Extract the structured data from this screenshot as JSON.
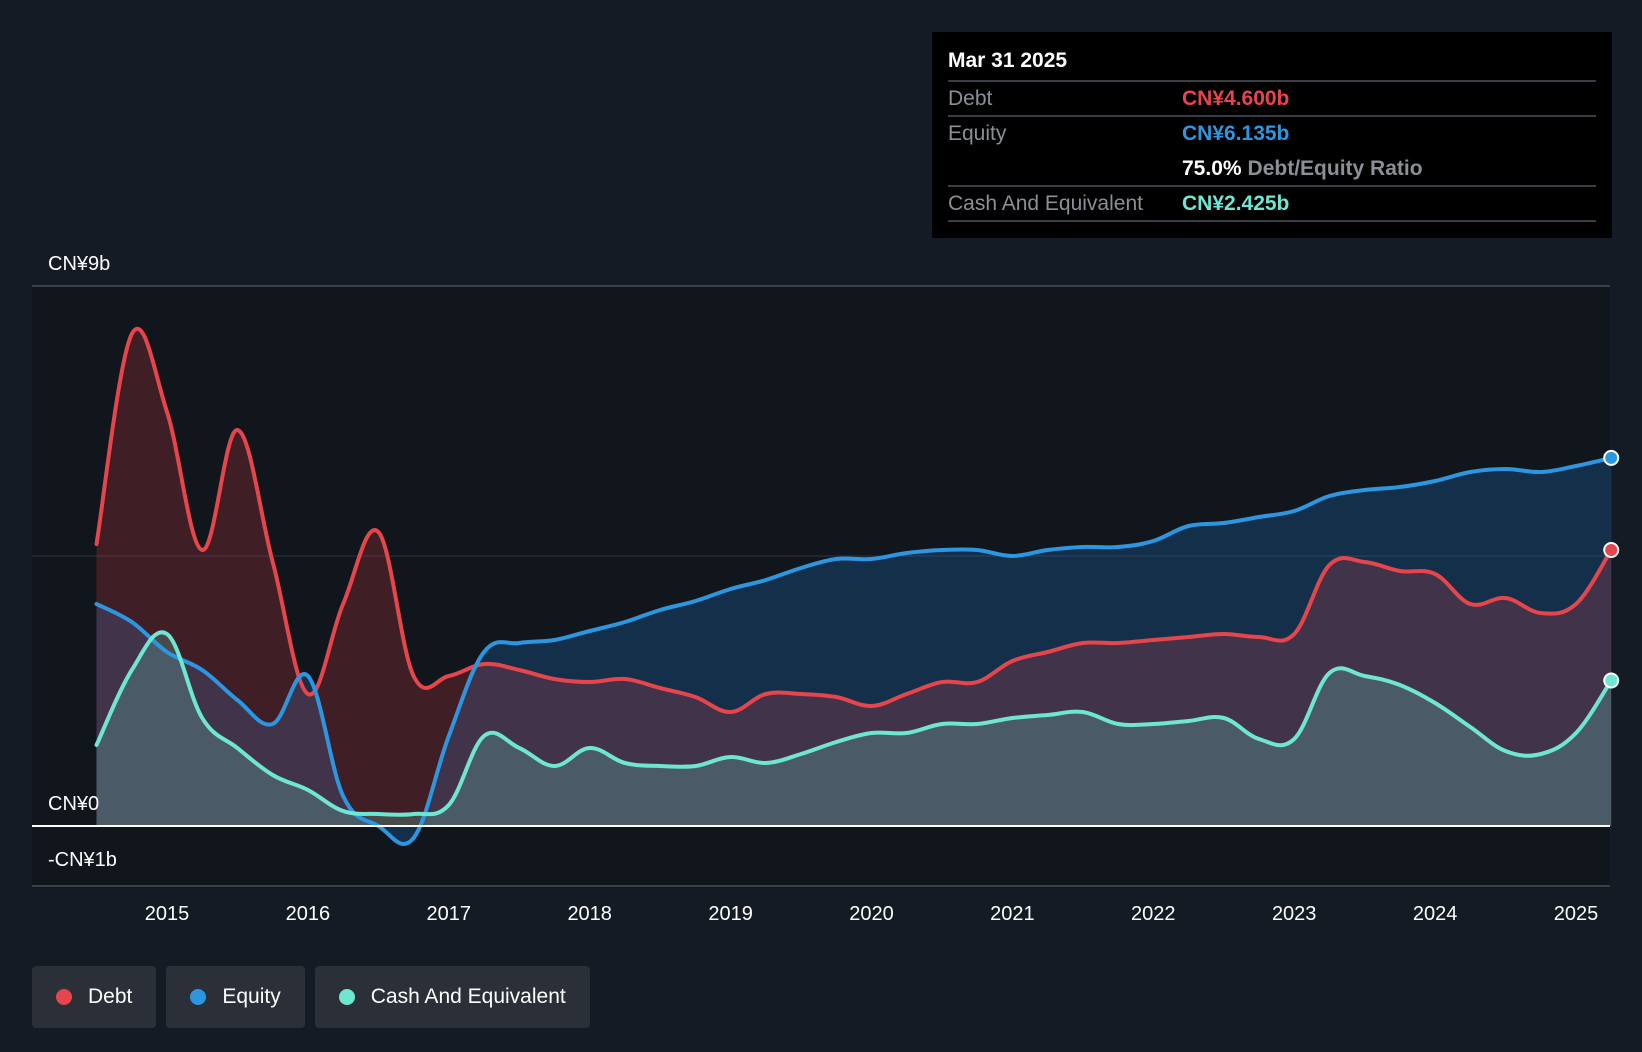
{
  "tooltip": {
    "date": "Mar 31 2025",
    "rows": [
      {
        "label": "Debt",
        "value": "CN¥4.600b",
        "color": "#e5454b"
      },
      {
        "label": "Equity",
        "value": "CN¥6.135b",
        "color": "#2d96e0"
      },
      {
        "label": "",
        "value": "75.0%",
        "suffix": "Debt/Equity Ratio",
        "color": "#ffffff"
      },
      {
        "label": "Cash And Equivalent",
        "value": "CN¥2.425b",
        "color": "#6ee6d2"
      }
    ]
  },
  "legend": [
    {
      "label": "Debt",
      "color": "#e5454b"
    },
    {
      "label": "Equity",
      "color": "#2d96e0"
    },
    {
      "label": "Cash And Equivalent",
      "color": "#6ee6d2"
    }
  ],
  "chart_data": {
    "type": "area",
    "title": "",
    "xlabel": "",
    "ylabel": "",
    "y_tick_labels": [
      "CN¥9b",
      "CN¥0",
      "-CN¥1b"
    ],
    "y_ticks": [
      9,
      0,
      -1
    ],
    "ylim": [
      -1,
      9
    ],
    "xlim": [
      2014.5,
      2025.25
    ],
    "x_tick_labels": [
      "2015",
      "2016",
      "2017",
      "2018",
      "2019",
      "2020",
      "2021",
      "2022",
      "2023",
      "2024",
      "2025"
    ],
    "x_ticks": [
      2015,
      2016,
      2017,
      2018,
      2019,
      2020,
      2021,
      2022,
      2023,
      2024,
      2025
    ],
    "grid": "horizontal",
    "legend_position": "bottom-left",
    "series": [
      {
        "name": "Debt",
        "color": "#e5454b",
        "points": [
          [
            2014.5,
            4.7
          ],
          [
            2014.75,
            8.2
          ],
          [
            2015.0,
            6.9
          ],
          [
            2015.25,
            4.6
          ],
          [
            2015.5,
            6.6
          ],
          [
            2015.75,
            4.4
          ],
          [
            2016.0,
            2.2
          ],
          [
            2016.25,
            3.7
          ],
          [
            2016.5,
            4.9
          ],
          [
            2016.75,
            2.5
          ],
          [
            2017.0,
            2.5
          ],
          [
            2017.25,
            2.7
          ],
          [
            2017.5,
            2.6
          ],
          [
            2017.75,
            2.45
          ],
          [
            2018.0,
            2.4
          ],
          [
            2018.25,
            2.45
          ],
          [
            2018.5,
            2.3
          ],
          [
            2018.75,
            2.15
          ],
          [
            2019.0,
            1.9
          ],
          [
            2019.25,
            2.2
          ],
          [
            2019.5,
            2.2
          ],
          [
            2019.75,
            2.15
          ],
          [
            2020.0,
            2.0
          ],
          [
            2020.25,
            2.2
          ],
          [
            2020.5,
            2.4
          ],
          [
            2020.75,
            2.4
          ],
          [
            2021.0,
            2.75
          ],
          [
            2021.25,
            2.9
          ],
          [
            2021.5,
            3.05
          ],
          [
            2021.75,
            3.05
          ],
          [
            2022.0,
            3.1
          ],
          [
            2022.25,
            3.15
          ],
          [
            2022.5,
            3.2
          ],
          [
            2022.75,
            3.15
          ],
          [
            2023.0,
            3.2
          ],
          [
            2023.25,
            4.35
          ],
          [
            2023.5,
            4.4
          ],
          [
            2023.75,
            4.25
          ],
          [
            2024.0,
            4.2
          ],
          [
            2024.25,
            3.7
          ],
          [
            2024.5,
            3.8
          ],
          [
            2024.75,
            3.55
          ],
          [
            2025.0,
            3.7
          ],
          [
            2025.25,
            4.6
          ]
        ]
      },
      {
        "name": "Equity",
        "color": "#2d96e0",
        "points": [
          [
            2014.5,
            3.7
          ],
          [
            2014.75,
            3.4
          ],
          [
            2015.0,
            2.9
          ],
          [
            2015.25,
            2.6
          ],
          [
            2015.5,
            2.1
          ],
          [
            2015.75,
            1.7
          ],
          [
            2016.0,
            2.5
          ],
          [
            2016.25,
            0.5
          ],
          [
            2016.5,
            0.0
          ],
          [
            2016.75,
            -0.2
          ],
          [
            2017.0,
            1.5
          ],
          [
            2017.25,
            2.9
          ],
          [
            2017.5,
            3.05
          ],
          [
            2017.75,
            3.1
          ],
          [
            2018.0,
            3.25
          ],
          [
            2018.25,
            3.4
          ],
          [
            2018.5,
            3.6
          ],
          [
            2018.75,
            3.75
          ],
          [
            2019.0,
            3.95
          ],
          [
            2019.25,
            4.1
          ],
          [
            2019.5,
            4.3
          ],
          [
            2019.75,
            4.45
          ],
          [
            2020.0,
            4.45
          ],
          [
            2020.25,
            4.55
          ],
          [
            2020.5,
            4.6
          ],
          [
            2020.75,
            4.6
          ],
          [
            2021.0,
            4.5
          ],
          [
            2021.25,
            4.6
          ],
          [
            2021.5,
            4.65
          ],
          [
            2021.75,
            4.65
          ],
          [
            2022.0,
            4.75
          ],
          [
            2022.25,
            5.0
          ],
          [
            2022.5,
            5.05
          ],
          [
            2022.75,
            5.15
          ],
          [
            2023.0,
            5.25
          ],
          [
            2023.25,
            5.5
          ],
          [
            2023.5,
            5.6
          ],
          [
            2023.75,
            5.65
          ],
          [
            2024.0,
            5.75
          ],
          [
            2024.25,
            5.9
          ],
          [
            2024.5,
            5.95
          ],
          [
            2024.75,
            5.9
          ],
          [
            2025.0,
            6.0
          ],
          [
            2025.25,
            6.135
          ]
        ]
      },
      {
        "name": "Cash And Equivalent",
        "color": "#6ee6d2",
        "points": [
          [
            2014.5,
            1.35
          ],
          [
            2014.75,
            2.6
          ],
          [
            2015.0,
            3.2
          ],
          [
            2015.25,
            1.8
          ],
          [
            2015.5,
            1.3
          ],
          [
            2015.75,
            0.85
          ],
          [
            2016.0,
            0.6
          ],
          [
            2016.25,
            0.25
          ],
          [
            2016.5,
            0.2
          ],
          [
            2016.75,
            0.2
          ],
          [
            2017.0,
            0.35
          ],
          [
            2017.25,
            1.5
          ],
          [
            2017.5,
            1.3
          ],
          [
            2017.75,
            1.0
          ],
          [
            2018.0,
            1.3
          ],
          [
            2018.25,
            1.05
          ],
          [
            2018.5,
            1.0
          ],
          [
            2018.75,
            1.0
          ],
          [
            2019.0,
            1.15
          ],
          [
            2019.25,
            1.05
          ],
          [
            2019.5,
            1.2
          ],
          [
            2019.75,
            1.4
          ],
          [
            2020.0,
            1.55
          ],
          [
            2020.25,
            1.55
          ],
          [
            2020.5,
            1.7
          ],
          [
            2020.75,
            1.7
          ],
          [
            2021.0,
            1.8
          ],
          [
            2021.25,
            1.85
          ],
          [
            2021.5,
            1.9
          ],
          [
            2021.75,
            1.7
          ],
          [
            2022.0,
            1.7
          ],
          [
            2022.25,
            1.75
          ],
          [
            2022.5,
            1.8
          ],
          [
            2022.75,
            1.45
          ],
          [
            2023.0,
            1.45
          ],
          [
            2023.25,
            2.55
          ],
          [
            2023.5,
            2.5
          ],
          [
            2023.75,
            2.35
          ],
          [
            2024.0,
            2.05
          ],
          [
            2024.25,
            1.65
          ],
          [
            2024.5,
            1.25
          ],
          [
            2024.75,
            1.2
          ],
          [
            2025.0,
            1.55
          ],
          [
            2025.25,
            2.425
          ]
        ]
      }
    ]
  }
}
